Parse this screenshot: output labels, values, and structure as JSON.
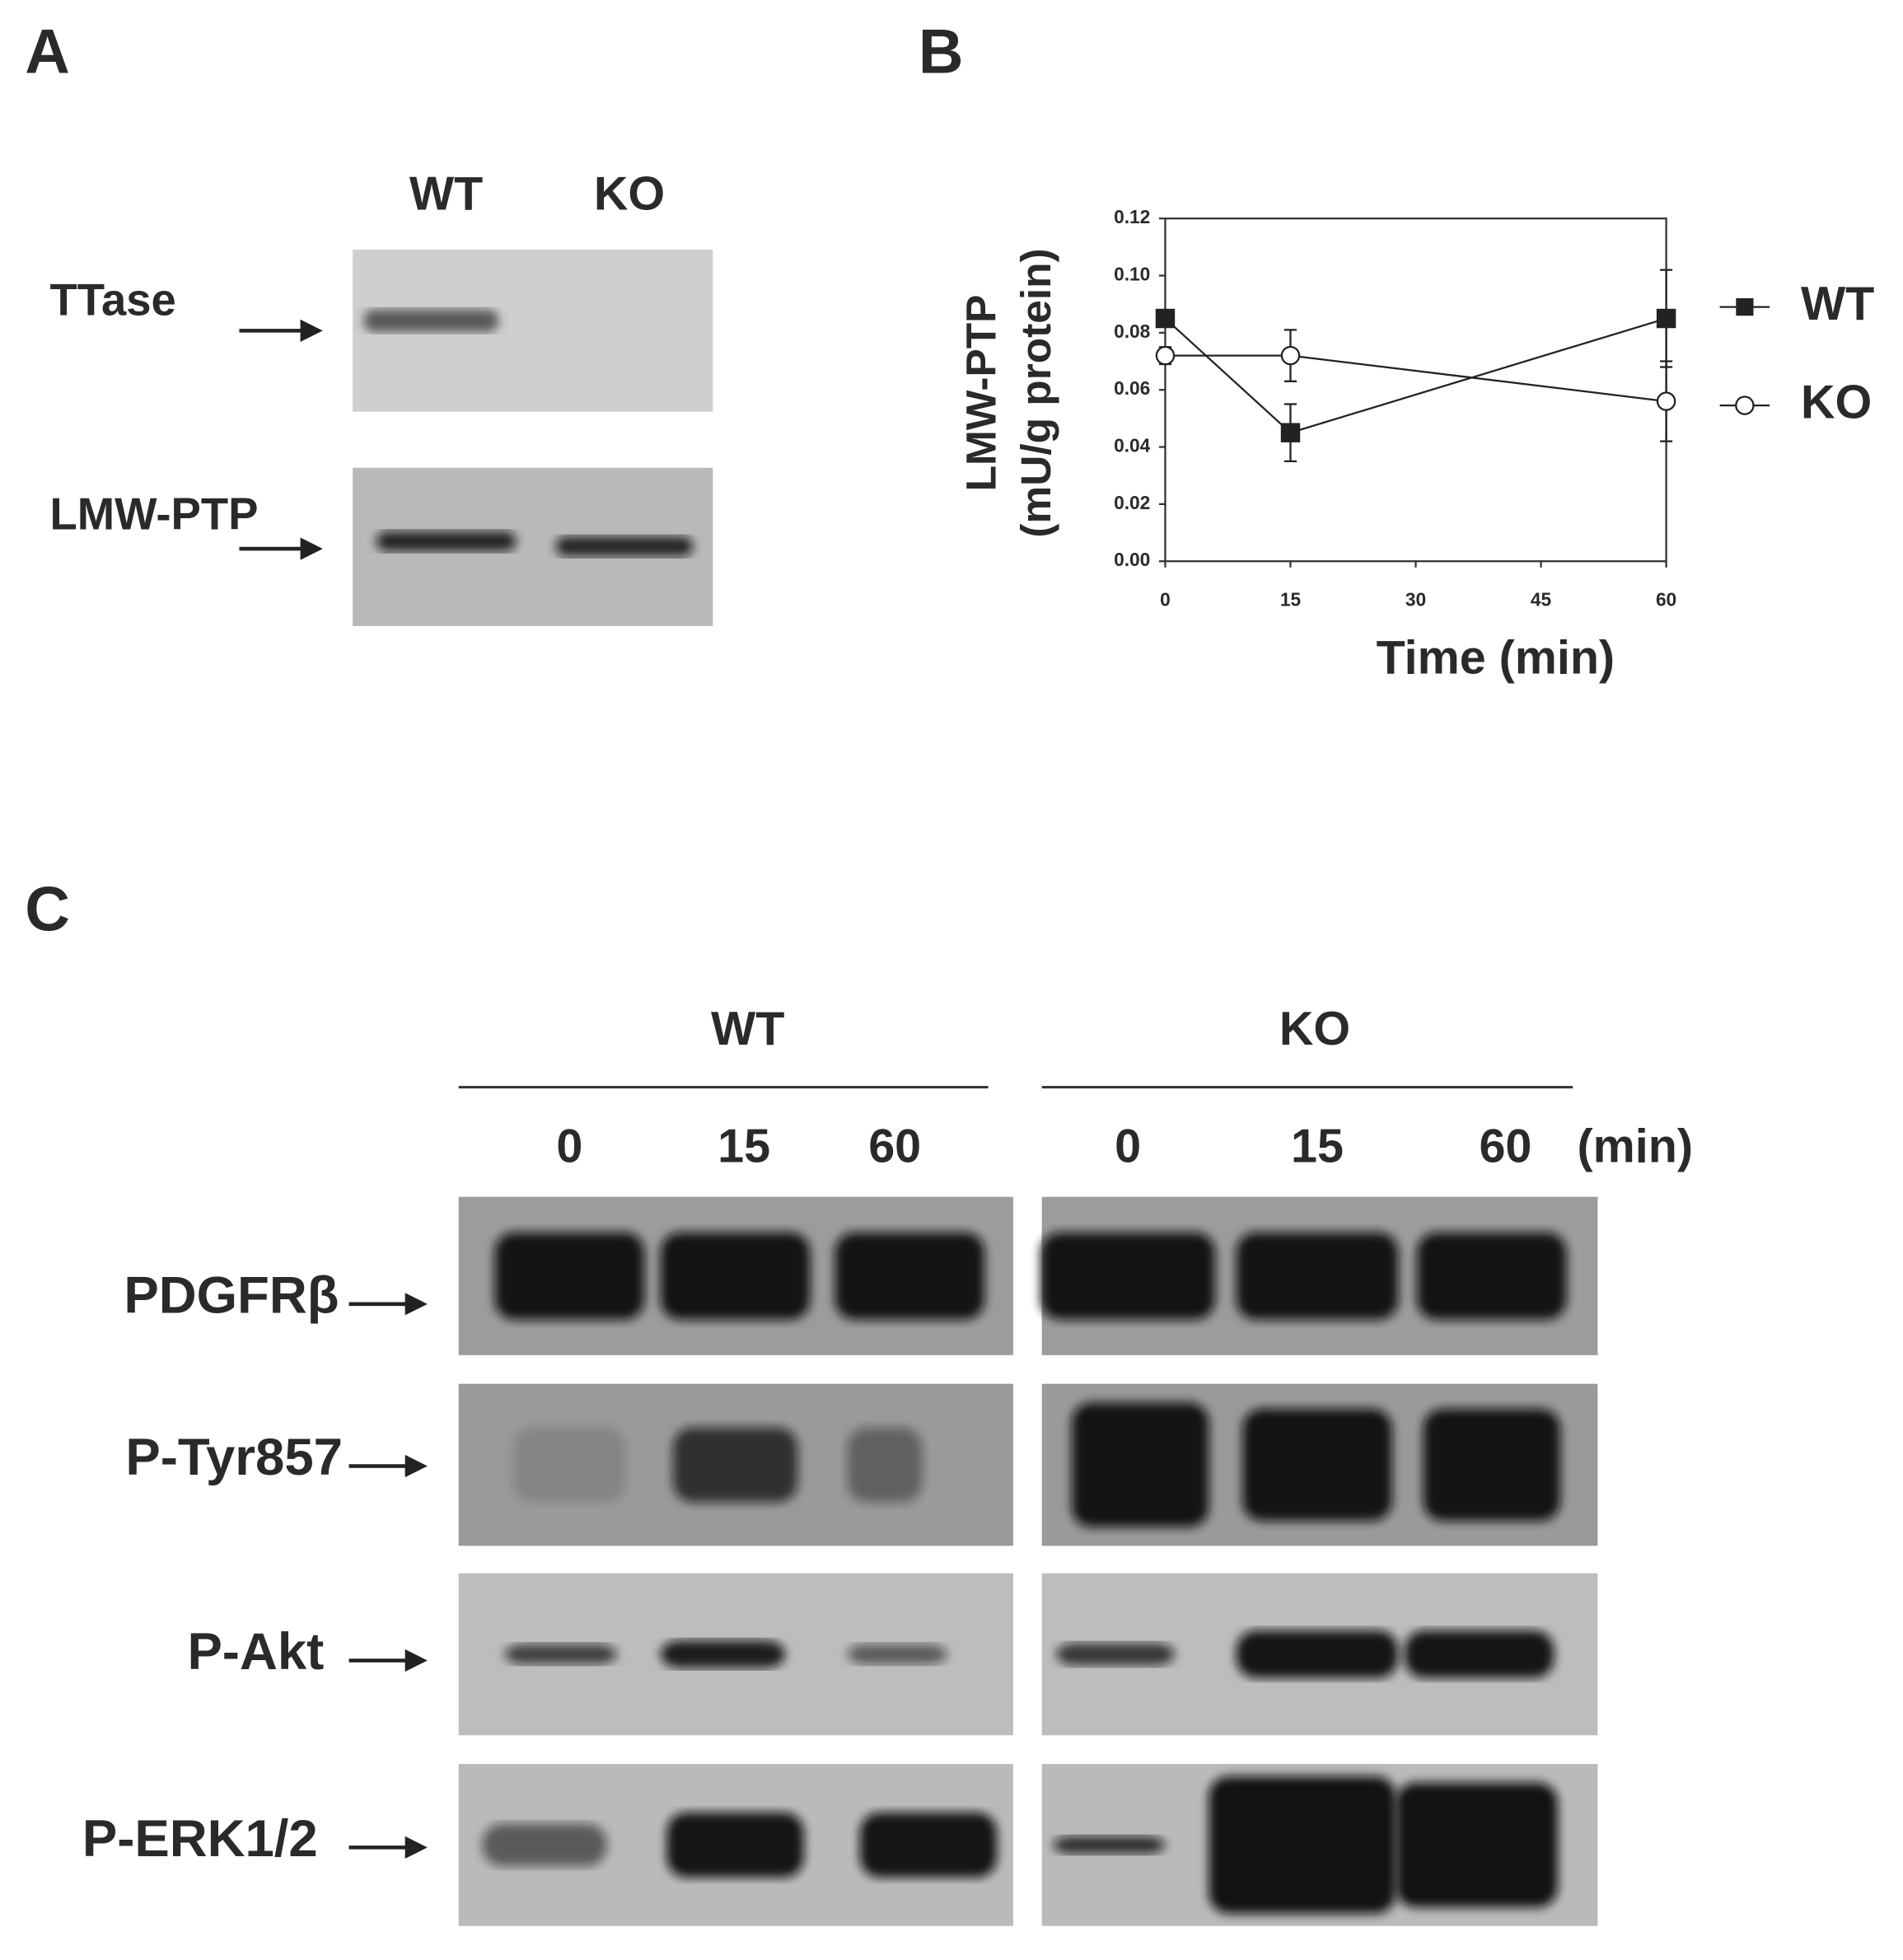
{
  "panel_a": {
    "label": "A",
    "lanes": [
      "WT",
      "KO"
    ],
    "blots": [
      "TTase",
      "LMW-PTP"
    ]
  },
  "chart_data": {
    "type": "line",
    "panel_label": "B",
    "x": [
      0,
      15,
      60
    ],
    "xlim": [
      0,
      60
    ],
    "xticks": [
      0,
      15,
      30,
      45,
      60
    ],
    "ylim": [
      0,
      0.12
    ],
    "yticks": [
      {
        "value": 0,
        "label": "0.00"
      },
      0.02,
      0.04,
      0.06,
      0.08,
      {
        "value": 0.1,
        "label": "0.10"
      },
      0.12
    ],
    "xlabel": "Time (min)",
    "ylabel": [
      "LMW-PTP",
      "(mU/g protein)"
    ],
    "legend": "right",
    "series": [
      {
        "name": "WT",
        "marker": "square",
        "color": "#222222",
        "values": [
          0.085,
          0.045,
          0.085
        ],
        "errors": [
          0.002,
          0.01,
          0.017
        ]
      },
      {
        "name": "KO",
        "marker": "circle",
        "color": "#222222",
        "values": [
          0.072,
          0.072,
          0.056
        ],
        "errors": [
          0.003,
          0.009,
          0.014
        ]
      }
    ]
  },
  "panel_c": {
    "label": "C",
    "unit": "(min)",
    "groups": [
      {
        "name": "WT",
        "times": [
          "0",
          "15",
          "60"
        ]
      },
      {
        "name": "KO",
        "times": [
          "0",
          "15",
          "60"
        ]
      }
    ],
    "blots": [
      "PDGFRβ",
      "P-Tyr857",
      "P-Akt",
      "P-ERK1/2"
    ]
  }
}
